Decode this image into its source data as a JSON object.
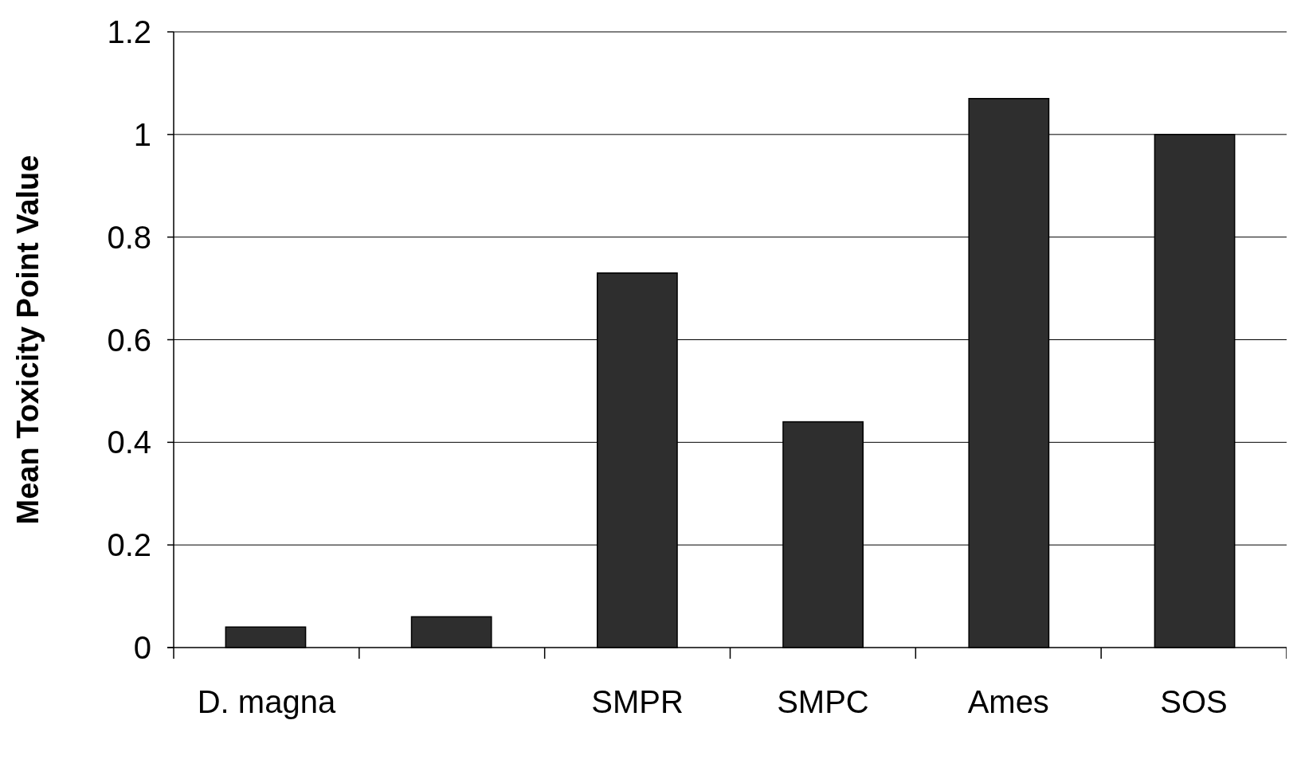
{
  "chart_data": {
    "type": "bar",
    "ylabel": "Mean Toxicity Point Value",
    "categories": [
      "D. magna",
      null,
      "SMPR",
      "SMPC",
      "Ames",
      "SOS"
    ],
    "values": [
      0.04,
      0.06,
      0.73,
      0.44,
      1.07,
      1.0
    ],
    "color": "#2e2e2e",
    "ylim": [
      0,
      1.2
    ],
    "yticks": [
      0,
      0.2,
      0.4,
      0.6,
      0.8,
      1,
      1.2
    ],
    "grid": "y"
  }
}
